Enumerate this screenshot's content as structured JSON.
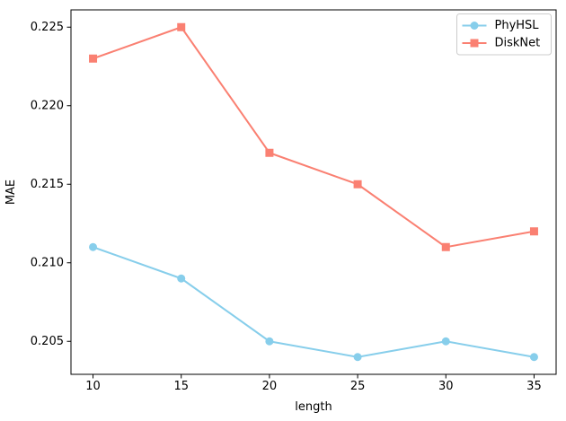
{
  "chart_data": {
    "type": "line",
    "xlabel": "length",
    "ylabel": "MAE",
    "x": [
      10,
      15,
      20,
      25,
      30,
      35
    ],
    "series": [
      {
        "name": "PhyHSL",
        "values": [
          0.211,
          0.209,
          0.205,
          0.204,
          0.205,
          0.204
        ],
        "color": "#87CEEB",
        "marker": "circle"
      },
      {
        "name": "DiskNet",
        "values": [
          0.223,
          0.225,
          0.217,
          0.215,
          0.211,
          0.212
        ],
        "color": "#FA8072",
        "marker": "square"
      }
    ],
    "xlim": [
      8.75,
      36.25
    ],
    "ylim": [
      0.2029,
      0.2261
    ],
    "xticks": {
      "values": [
        10,
        15,
        20,
        25,
        30,
        35
      ],
      "labels": [
        "10",
        "15",
        "20",
        "25",
        "30",
        "35"
      ]
    },
    "yticks": {
      "values": [
        0.205,
        0.21,
        0.215,
        0.22,
        0.225
      ],
      "labels": [
        "0.205",
        "0.210",
        "0.215",
        "0.220",
        "0.225"
      ]
    },
    "grid": false,
    "legend": {
      "position": "upper right",
      "entries": [
        "PhyHSL",
        "DiskNet"
      ]
    },
    "colors": {
      "axis": "#000000",
      "tick_label": "#000000",
      "legend_border": "#cccccc",
      "background": "#ffffff"
    }
  }
}
